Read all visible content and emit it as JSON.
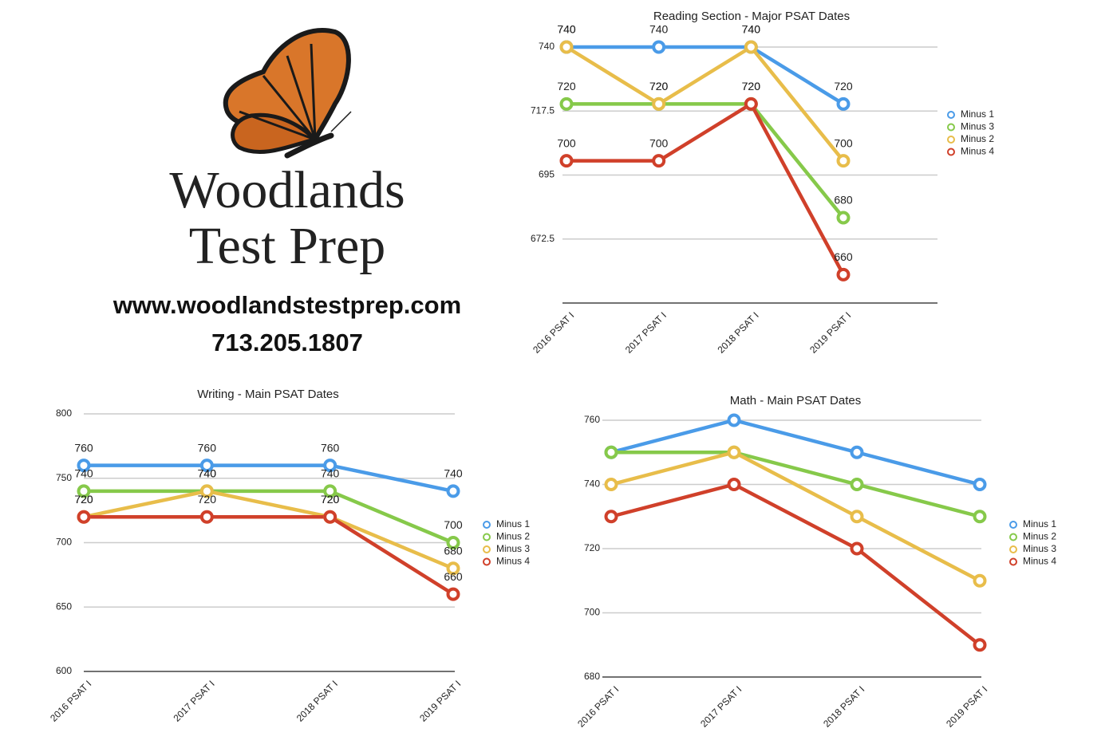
{
  "branding": {
    "name_line1": "Woodlands",
    "name_line2": "Test Prep",
    "url": "www.woodlandstestprep.com",
    "phone": "713.205.1807"
  },
  "chart_data": [
    {
      "type": "line",
      "title": "Reading Section - Major PSAT Dates",
      "categories": [
        "2016 PSAT I",
        "2017 PSAT I",
        "2018 PSAT I",
        "2019 PSAT I"
      ],
      "series": [
        {
          "name": "Minus 1",
          "color": "#4a9be8",
          "values": [
            740,
            740,
            740,
            720
          ]
        },
        {
          "name": "Minus 3",
          "color": "#86c94a",
          "values": [
            720,
            720,
            720,
            680
          ]
        },
        {
          "name": "Minus 2",
          "color": "#e8bd4a",
          "values": [
            740,
            720,
            740,
            700
          ]
        },
        {
          "name": "Minus 4",
          "color": "#d0402a",
          "values": [
            700,
            700,
            720,
            660
          ]
        }
      ],
      "ylim": [
        650,
        740
      ],
      "yticks": [
        672.5,
        695,
        717.5,
        740
      ],
      "grid": true,
      "data_labels": true,
      "legend": "right"
    },
    {
      "type": "line",
      "title": "Writing - Main PSAT Dates",
      "categories": [
        "2016 PSAT I",
        "2017 PSAT I",
        "2018 PSAT I",
        "2019 PSAT I"
      ],
      "series": [
        {
          "name": "Minus 1",
          "color": "#4a9be8",
          "values": [
            760,
            760,
            760,
            740
          ]
        },
        {
          "name": "Minus 2",
          "color": "#86c94a",
          "values": [
            740,
            740,
            740,
            700
          ]
        },
        {
          "name": "Minus 3",
          "color": "#e8bd4a",
          "values": [
            720,
            740,
            720,
            680
          ]
        },
        {
          "name": "Minus 4",
          "color": "#d0402a",
          "values": [
            720,
            720,
            720,
            660
          ]
        }
      ],
      "ylim": [
        600,
        800
      ],
      "yticks": [
        600,
        650,
        700,
        750,
        800
      ],
      "grid": true,
      "data_labels": true,
      "legend": "right"
    },
    {
      "type": "line",
      "title": "Math - Main PSAT Dates",
      "categories": [
        "2016 PSAT I",
        "2017 PSAT I",
        "2018 PSAT I",
        "2019 PSAT I"
      ],
      "series": [
        {
          "name": "Minus 1",
          "color": "#4a9be8",
          "values": [
            750,
            760,
            750,
            740
          ]
        },
        {
          "name": "Minus 2",
          "color": "#86c94a",
          "values": [
            750,
            750,
            740,
            730
          ]
        },
        {
          "name": "Minus 3",
          "color": "#e8bd4a",
          "values": [
            740,
            750,
            730,
            710
          ]
        },
        {
          "name": "Minus 4",
          "color": "#d0402a",
          "values": [
            730,
            740,
            720,
            690
          ]
        }
      ],
      "ylim": [
        680,
        760
      ],
      "yticks": [
        680,
        700,
        720,
        740,
        760
      ],
      "grid": true,
      "data_labels": false,
      "legend": "right"
    }
  ]
}
